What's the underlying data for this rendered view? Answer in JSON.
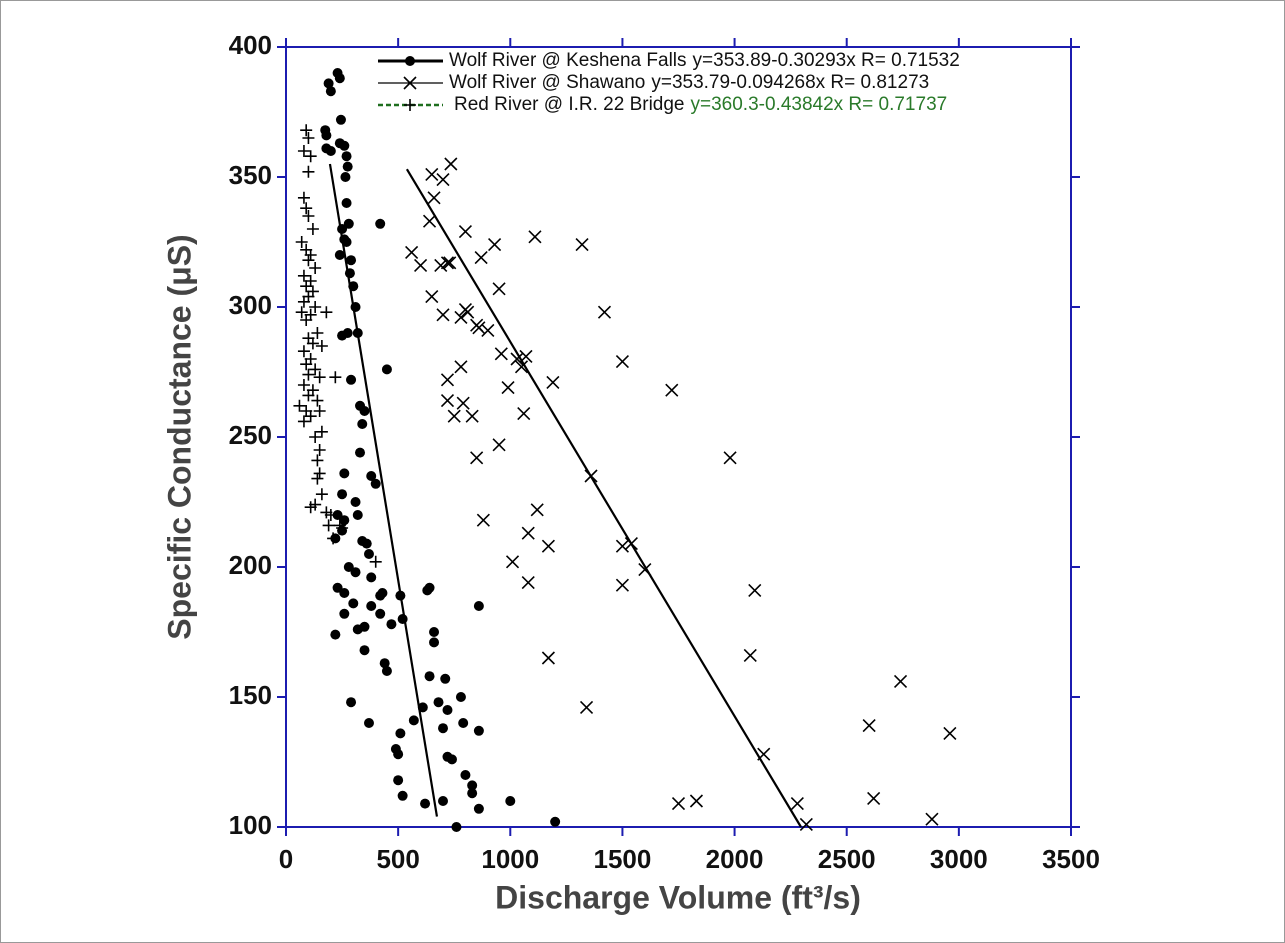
{
  "chart_data": {
    "type": "scatter",
    "xlabel": "Discharge Volume (ft³/s)",
    "ylabel": "Specific Conductance (μS)",
    "xlim": [
      0,
      3500
    ],
    "ylim": [
      100,
      400
    ],
    "xticks": [
      0,
      500,
      1000,
      1500,
      2000,
      2500,
      3000,
      3500
    ],
    "yticks": [
      100,
      150,
      200,
      250,
      300,
      350,
      400
    ],
    "axis_color": "#1c1cb0",
    "series": [
      {
        "name": "Wolf River @ Keshena Falls",
        "equation": "y=353.89-0.30293x  R= 0.71532",
        "equation_color": "#111111",
        "marker": "dot",
        "color": "#000000",
        "legend_line": "solid-thick",
        "x": [
          230,
          240,
          190,
          200,
          245,
          175,
          180,
          240,
          260,
          270,
          275,
          265,
          180,
          200,
          270,
          420,
          280,
          250,
          260,
          270,
          240,
          290,
          285,
          300,
          310,
          275,
          320,
          250,
          290,
          450,
          330,
          350,
          340,
          330,
          260,
          380,
          400,
          250,
          310,
          230,
          320,
          260,
          250,
          220,
          340,
          360,
          370,
          280,
          310,
          380,
          230,
          260,
          430,
          300,
          420,
          380,
          510,
          640,
          630,
          860,
          260,
          320,
          420,
          220,
          350,
          470,
          520,
          660,
          660,
          440,
          450,
          640,
          710,
          780,
          350,
          290,
          370,
          570,
          610,
          680,
          700,
          790,
          860,
          720,
          490,
          500,
          500,
          720,
          740,
          800,
          830,
          830,
          520,
          700,
          620,
          860,
          1000,
          760,
          1200,
          510
        ],
        "values": [
          390,
          388,
          386,
          383,
          372,
          368,
          366,
          363,
          362,
          358,
          354,
          350,
          361,
          360,
          340,
          332,
          332,
          330,
          326,
          325,
          320,
          318,
          313,
          308,
          300,
          290,
          290,
          289,
          272,
          276,
          262,
          260,
          255,
          244,
          236,
          235,
          232,
          228,
          225,
          220,
          220,
          218,
          214,
          211,
          210,
          209,
          205,
          200,
          198,
          196,
          192,
          190,
          190,
          186,
          189,
          185,
          189,
          192,
          191,
          185,
          182,
          176,
          182,
          174,
          177,
          178,
          180,
          175,
          171,
          163,
          160,
          158,
          157,
          150,
          168,
          148,
          140,
          141,
          146,
          148,
          138,
          140,
          137,
          145,
          130,
          128,
          118,
          127,
          126,
          120,
          116,
          113,
          112,
          110,
          109,
          107,
          110,
          100,
          102,
          136
        ],
        "fit": {
          "x": [
            196,
            673
          ],
          "values": [
            355,
            104
          ]
        }
      },
      {
        "name": "Wolf River @ Shawano",
        "equation": "y=353.79-0.094268x  R= 0.81273",
        "equation_color": "#111111",
        "marker": "cross",
        "color": "#000000",
        "legend_line": "solid-thin",
        "x": [
          735,
          650,
          700,
          660,
          640,
          800,
          1110,
          1320,
          930,
          560,
          870,
          600,
          720,
          730,
          690,
          1420,
          800,
          650,
          950,
          810,
          700,
          850,
          860,
          780,
          900,
          1500,
          960,
          1030,
          1070,
          780,
          1050,
          1190,
          720,
          1720,
          990,
          720,
          790,
          750,
          830,
          1060,
          950,
          850,
          1980,
          1360,
          1120,
          880,
          1080,
          1500,
          1540,
          1170,
          1010,
          1600,
          1080,
          1500,
          2090,
          2070,
          1170,
          2740,
          1340,
          2600,
          2960,
          2130,
          1750,
          1830,
          2280,
          2620,
          2320,
          2880
        ],
        "values": [
          355,
          351,
          349,
          342,
          333,
          329,
          327,
          324,
          324,
          321,
          319,
          316,
          317,
          317,
          316,
          298,
          299,
          304,
          307,
          298,
          297,
          293,
          292,
          296,
          291,
          279,
          282,
          280,
          281,
          277,
          277,
          271,
          272,
          268,
          269,
          264,
          263,
          258,
          258,
          259,
          247,
          242,
          242,
          235,
          222,
          218,
          213,
          208,
          209,
          208,
          202,
          199,
          194,
          193,
          191,
          166,
          165,
          156,
          146,
          139,
          136,
          128,
          109,
          110,
          109,
          111,
          101,
          103
        ],
        "fit": {
          "x": [
            539,
            2296
          ],
          "values": [
            353,
            100
          ]
        }
      },
      {
        "name": "Red River @ I.R. 22 Bridge",
        "equation": "y=360.3-0.43842x  R= 0.71737",
        "equation_color": "#2a7a2a",
        "marker": "plus",
        "color": "#000000",
        "legend_line": "dashed-green",
        "x": [
          90,
          100,
          110,
          80,
          100,
          80,
          90,
          100,
          120,
          70,
          90,
          110,
          100,
          130,
          80,
          110,
          90,
          120,
          100,
          80,
          130,
          70,
          110,
          90,
          180,
          140,
          100,
          120,
          160,
          80,
          110,
          90,
          130,
          100,
          150,
          220,
          80,
          120,
          100,
          140,
          60,
          90,
          150,
          110,
          80,
          160,
          130,
          150,
          140,
          150,
          140,
          160,
          130,
          110,
          180,
          200,
          190,
          240,
          210,
          250,
          400
        ],
        "values": [
          368,
          365,
          358,
          360,
          352,
          342,
          338,
          335,
          330,
          325,
          322,
          320,
          318,
          315,
          312,
          310,
          308,
          306,
          304,
          302,
          300,
          298,
          297,
          295,
          298,
          290,
          288,
          286,
          285,
          283,
          280,
          278,
          276,
          274,
          273,
          273,
          270,
          268,
          266,
          264,
          262,
          260,
          260,
          258,
          256,
          252,
          250,
          245,
          241,
          236,
          234,
          228,
          224,
          223,
          221,
          220,
          216,
          216,
          211,
          215,
          202
        ]
      }
    ]
  }
}
